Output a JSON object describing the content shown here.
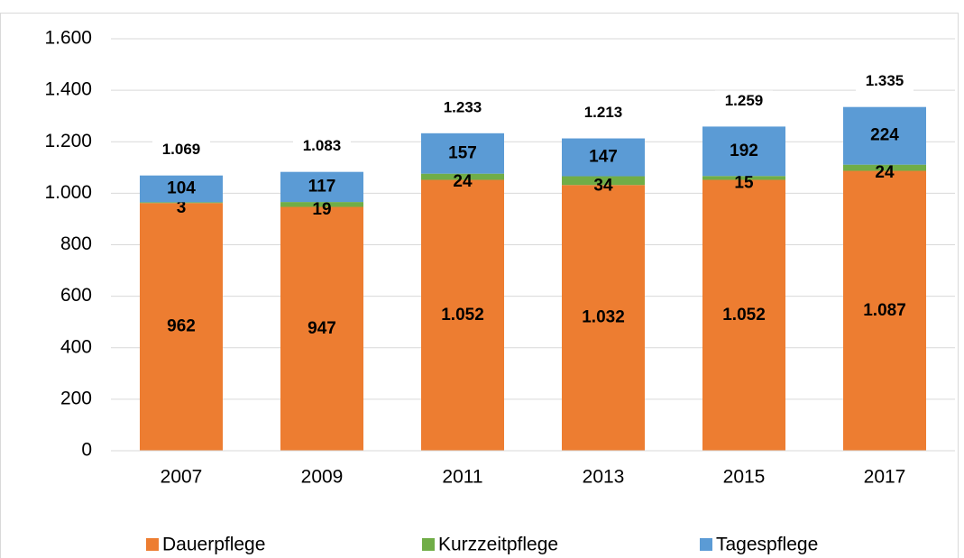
{
  "chart_data": {
    "type": "stacked_bar",
    "categories": [
      "2007",
      "2009",
      "2011",
      "2013",
      "2015",
      "2017"
    ],
    "series": [
      {
        "name": "Dauerpflege",
        "color": "#ed7d31",
        "values": [
          962,
          947,
          1052,
          1032,
          1052,
          1087
        ],
        "value_labels": [
          "962",
          "947",
          "1.052",
          "1.032",
          "1.052",
          "1.087"
        ]
      },
      {
        "name": "Kurzzeitpflege",
        "color": "#70ad47",
        "values": [
          3,
          19,
          24,
          34,
          15,
          24
        ]
      },
      {
        "name": "Tagespflege",
        "color": "#5b9bd5",
        "values": [
          104,
          117,
          157,
          147,
          192,
          224
        ]
      }
    ],
    "totals": {
      "values": [
        1069,
        1083,
        1233,
        1213,
        1259,
        1335
      ],
      "value_labels": [
        "1.069",
        "1.083",
        "1.233",
        "1.213",
        "1.259",
        "1.335"
      ]
    },
    "ylim": [
      0,
      1600
    ],
    "yticks": [
      0,
      200,
      400,
      600,
      800,
      {
        "value": 1000,
        "label": "1.000"
      },
      {
        "value": 1200,
        "label": "1.200"
      },
      {
        "value": 1400,
        "label": "1.400"
      },
      {
        "value": 1600,
        "label": "1.600"
      }
    ],
    "grid": true,
    "legend": "bottom"
  }
}
